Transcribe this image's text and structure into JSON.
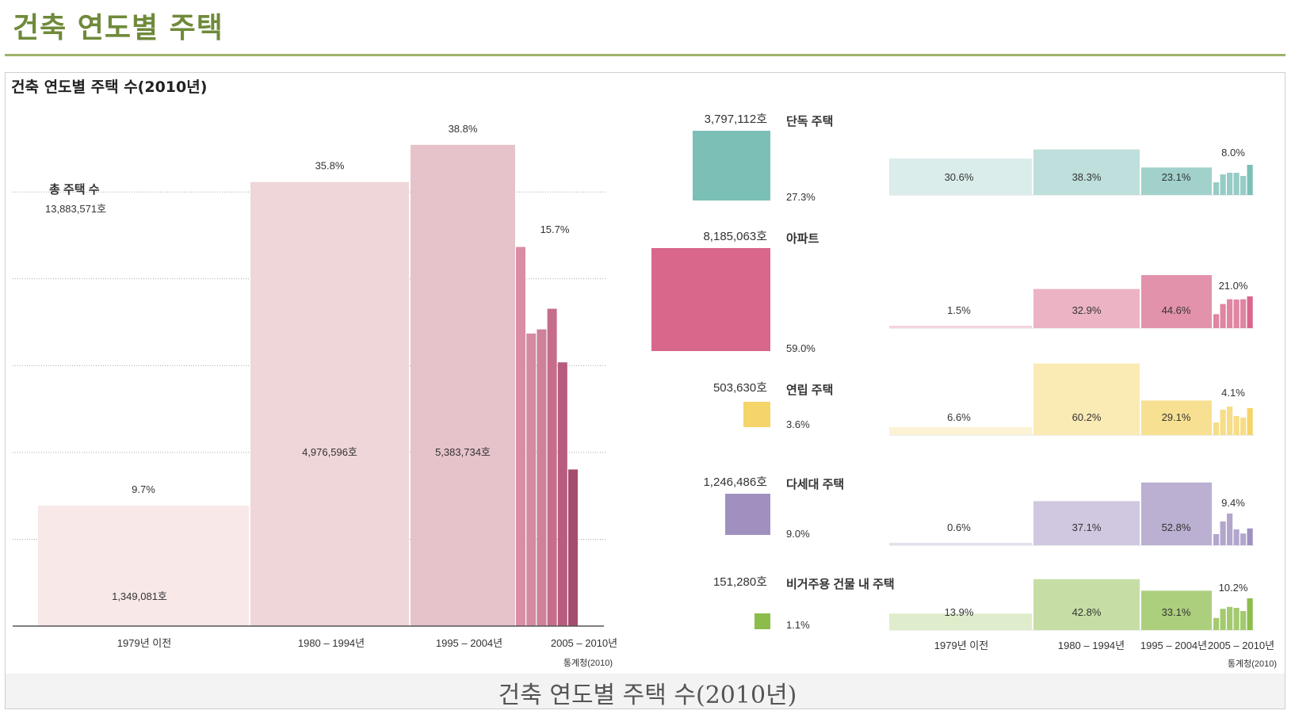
{
  "page_title": "건축 연도별 주택",
  "figure_title": "건축 연도별 주택 수(2010년)",
  "caption": "건축 연도별 주택 수(2010년)",
  "source": "통계청(2010)",
  "chart_data": [
    {
      "type": "bar",
      "total_label": "총 주택 수",
      "total_value": "13,883,571호",
      "categories": [
        "1979년 이전",
        "1980 – 1994년",
        "1995 – 2004년",
        "2005 – 2010년"
      ],
      "values": [
        1349081,
        4976596,
        5383734,
        null
      ],
      "value_labels": [
        "1,349,081호",
        "4,976,596호",
        "5,383,734호",
        ""
      ],
      "percent_labels": [
        "9.7%",
        "35.8%",
        "38.8%",
        "15.7%"
      ],
      "percents": [
        9.7,
        35.8,
        38.8,
        15.7
      ],
      "last_period_yearly_relative_heights": [
        0.92,
        0.71,
        0.72,
        0.77,
        0.64,
        0.38
      ],
      "ylim": [
        0,
        40
      ],
      "grid": true,
      "source": "통계청(2010)"
    },
    {
      "type": "bar",
      "categories": [
        "1979년 이전",
        "1980 – 1994년",
        "1995 – 2004년",
        "2005 – 2010년"
      ],
      "grid": false,
      "source": "통계청(2010)",
      "series": [
        {
          "name": "단독 주택",
          "count": "3,797,112호",
          "share": 27.3,
          "share_label": "27.3%",
          "color": "#7cbfb6",
          "percents": [
            30.6,
            38.3,
            23.1,
            8.0
          ],
          "percent_labels": [
            "30.6%",
            "38.3%",
            "23.1%",
            "8.0%"
          ],
          "yearly_relative_heights": [
            0.4,
            0.65,
            0.7,
            0.7,
            0.6,
            0.95
          ]
        },
        {
          "name": "아파트",
          "count": "8,185,063호",
          "share": 59.0,
          "share_label": "59.0%",
          "color": "#d8678b",
          "percents": [
            1.5,
            32.9,
            44.6,
            21.0
          ],
          "percent_labels": [
            "1.5%",
            "32.9%",
            "44.6%",
            "21.0%"
          ],
          "yearly_relative_heights": [
            0.44,
            0.76,
            0.91,
            0.9,
            0.91,
            1.0
          ]
        },
        {
          "name": "연립 주택",
          "count": "503,630호",
          "share": 3.6,
          "share_label": "3.6%",
          "color": "#f5d469",
          "percents": [
            6.6,
            60.2,
            29.1,
            4.1
          ],
          "percent_labels": [
            "6.6%",
            "60.2%",
            "29.1%",
            "4.1%"
          ],
          "yearly_relative_heights": [
            0.4,
            0.8,
            0.9,
            0.6,
            0.55,
            0.85
          ]
        },
        {
          "name": "다세대 주택",
          "count": "1,246,486호",
          "share": 9.0,
          "share_label": "9.0%",
          "color": "#a090c0",
          "percents": [
            0.6,
            37.1,
            52.8,
            9.4
          ],
          "percent_labels": [
            "0.6%",
            "37.1%",
            "52.8%",
            "9.4%"
          ],
          "yearly_relative_heights": [
            0.35,
            0.75,
            1.0,
            0.5,
            0.37,
            0.53
          ]
        },
        {
          "name": "비거주용 건물 내 주택",
          "count": "151,280호",
          "share": 1.1,
          "share_label": "1.1%",
          "color": "#8cbd4a",
          "percents": [
            13.9,
            42.8,
            33.1,
            10.2
          ],
          "percent_labels": [
            "13.9%",
            "42.8%",
            "33.1%",
            "10.2%"
          ],
          "yearly_relative_heights": [
            0.38,
            0.67,
            0.73,
            0.7,
            0.6,
            1.0
          ]
        }
      ]
    }
  ]
}
